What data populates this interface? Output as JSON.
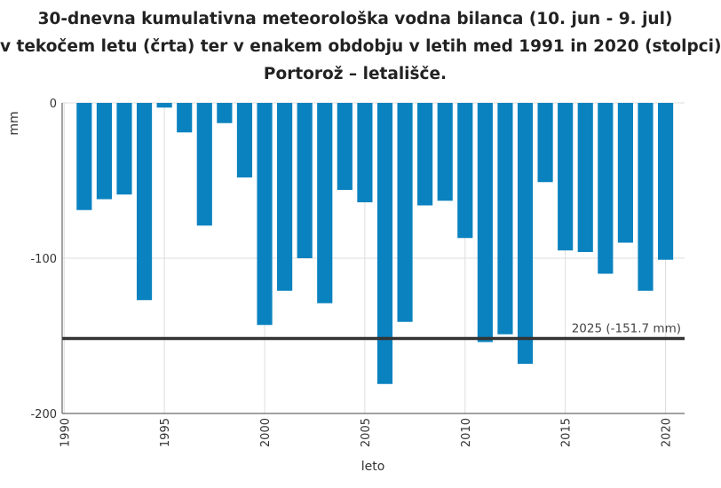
{
  "chart_data": {
    "type": "bar",
    "title_lines": [
      "30-dnevna kumulativna meteorološka vodna bilanca (10. jun - 9. jul)",
      "v tekočem letu (črta) ter v enakem obdobju v letih med 1991 in 2020 (stolpci)",
      "Portorož – letališče."
    ],
    "xlabel": "leto",
    "ylabel": "mm",
    "x": [
      1991,
      1992,
      1993,
      1994,
      1995,
      1996,
      1997,
      1998,
      1999,
      2000,
      2001,
      2002,
      2003,
      2004,
      2005,
      2006,
      2007,
      2008,
      2009,
      2010,
      2011,
      2012,
      2013,
      2014,
      2015,
      2016,
      2017,
      2018,
      2019,
      2020
    ],
    "values": [
      -69,
      -62,
      -59,
      -127,
      -3,
      -19,
      -79,
      -13,
      -48,
      -143,
      -121,
      -100,
      -129,
      -56,
      -64,
      -181,
      -141,
      -66,
      -63,
      -87,
      -154,
      -149,
      -168,
      -51,
      -95,
      -96,
      -110,
      -90,
      -121,
      -101
    ],
    "ylim": [
      -200,
      0
    ],
    "yticks": [
      0,
      -100,
      -200
    ],
    "ytick_labels": [
      "0",
      "-100",
      "-200"
    ],
    "xticks": [
      1990,
      1995,
      2000,
      2005,
      2010,
      2015,
      2020
    ],
    "xtick_labels": [
      "1990",
      "1995",
      "2000",
      "2005",
      "2010",
      "2015",
      "2020"
    ],
    "grid": true,
    "reference_line": {
      "value": -151.7,
      "label": "2025 (-151.7 mm)"
    },
    "colors": {
      "bar": "#0a82bf",
      "line": "#333333",
      "grid": "#dddddd"
    }
  }
}
